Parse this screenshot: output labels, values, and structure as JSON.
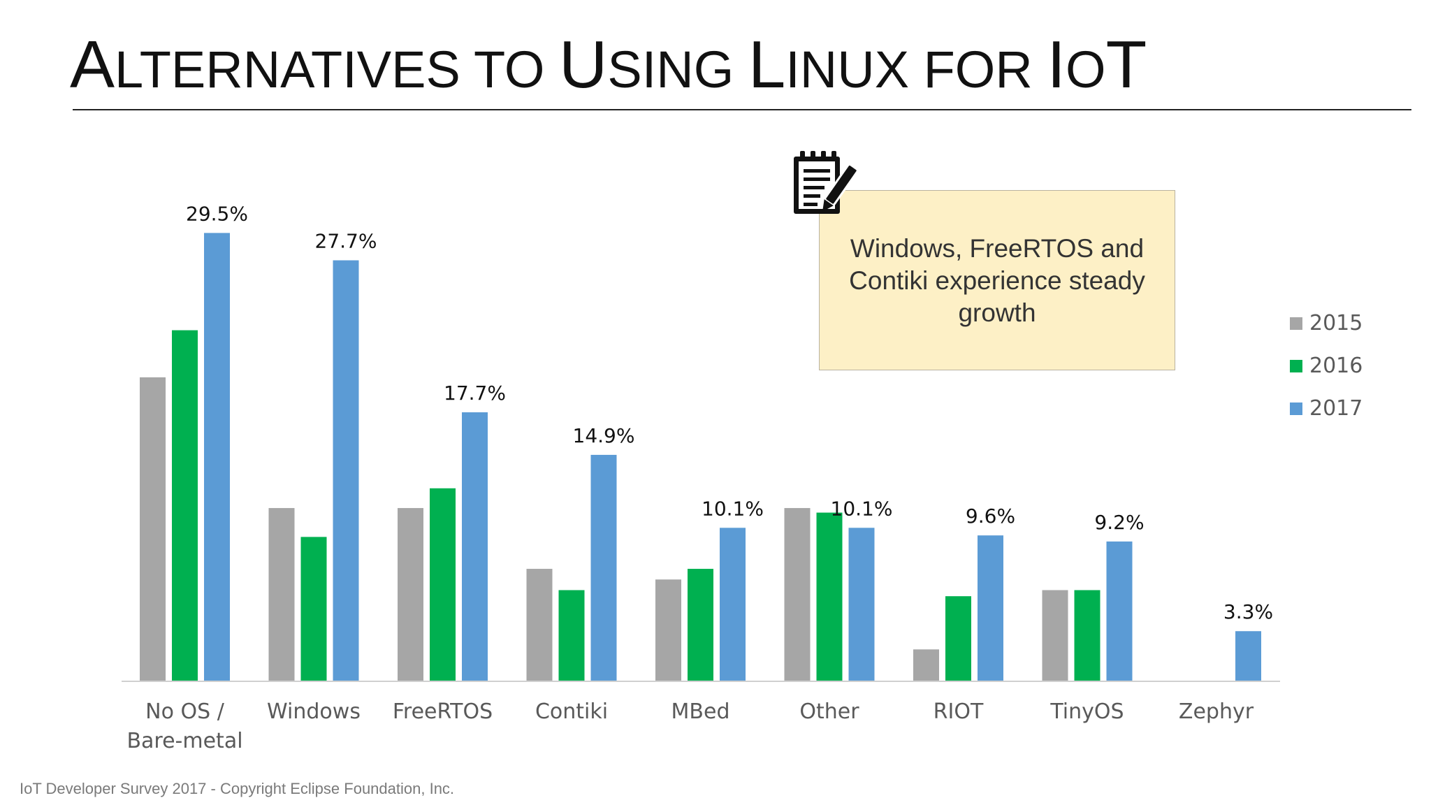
{
  "title": {
    "first_cap": "A",
    "first_rest": "LTERNATIVES TO ",
    "second_cap": "U",
    "second_rest": "SING ",
    "third_cap": "L",
    "third_rest": "INUX FOR ",
    "fourth_cap": "I",
    "fourth_rest": "O",
    "fourth_end": "T"
  },
  "callout": {
    "text": "Windows, FreeRTOS and Contiki experience steady growth",
    "icon": "notepad-pen-icon"
  },
  "footer": "IoT Developer Survey 2017 - Copyright Eclipse Foundation, Inc.",
  "colors": {
    "2015": "#a6a6a6",
    "2016": "#00b050",
    "2017": "#5b9bd5"
  },
  "chart_data": {
    "type": "bar",
    "title": "",
    "xlabel": "",
    "ylabel": "",
    "ylim": [
      0,
      32
    ],
    "grid": false,
    "legend_position": "right",
    "categories": [
      "No OS / Bare-metal",
      "Windows",
      "FreeRTOS",
      "Contiki",
      "MBed",
      "Other",
      "RIOT",
      "TinyOS",
      "Zephyr"
    ],
    "series": [
      {
        "name": "2015",
        "values": [
          20.0,
          11.4,
          11.4,
          7.4,
          6.7,
          11.4,
          2.1,
          6.0,
          null
        ]
      },
      {
        "name": "2016",
        "values": [
          23.1,
          9.5,
          12.7,
          6.0,
          7.4,
          11.1,
          5.6,
          6.0,
          null
        ]
      },
      {
        "name": "2017",
        "values": [
          29.5,
          27.7,
          17.7,
          14.9,
          10.1,
          10.1,
          9.6,
          9.2,
          3.3
        ]
      }
    ],
    "data_labels": [
      "29.5%",
      "27.7%",
      "17.7%",
      "14.9%",
      "10.1%",
      "10.1%",
      "9.6%",
      "9.2%",
      "3.3%"
    ]
  }
}
